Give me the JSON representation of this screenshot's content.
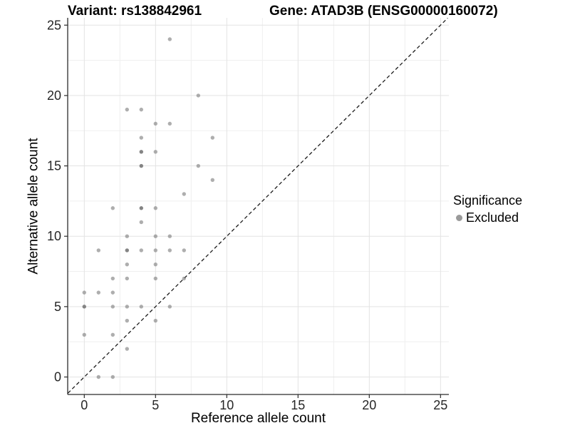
{
  "titles": {
    "variant": "Variant: rs138842961",
    "gene": "Gene: ATAD3B (ENSG00000160072)"
  },
  "legend": {
    "title": "Significance",
    "items": [
      {
        "label": "Excluded",
        "color": "#9a9a9a"
      }
    ]
  },
  "colors": {
    "point": "#7d7d7d",
    "grid_major": "#e3e3e3",
    "grid_minor": "#efefef",
    "axis": "#2b2b2b",
    "tick_label": "#262626",
    "identity_line": "#1c1c1c",
    "background": "#ffffff"
  },
  "chart_data": {
    "type": "scatter",
    "title": "Variant: rs138842961 / Gene: ATAD3B (ENSG00000160072)",
    "xlabel": "Reference allele count",
    "ylabel": "Alternative allele count",
    "xlim": [
      -1.15,
      25.55
    ],
    "ylim": [
      -1.25,
      25.5
    ],
    "x_ticks": [
      0,
      5,
      10,
      15,
      20,
      25
    ],
    "y_ticks": [
      0,
      5,
      10,
      15,
      20,
      25
    ],
    "x_minor": [
      2.5,
      7.5,
      12.5,
      17.5,
      22.5
    ],
    "y_minor": [
      2.5,
      7.5,
      12.5,
      17.5,
      22.5
    ],
    "grid": true,
    "legend_position": "right",
    "identity_line": {
      "style": "dashed",
      "slope": 1,
      "intercept": 0
    },
    "series": [
      {
        "name": "Excluded",
        "points": [
          [
            6,
            24
          ],
          [
            8,
            20
          ],
          [
            3,
            19
          ],
          [
            4,
            19
          ],
          [
            5,
            18
          ],
          [
            6,
            18
          ],
          [
            4,
            17
          ],
          [
            9,
            17
          ],
          [
            4,
            16
          ],
          [
            5,
            16
          ],
          [
            4,
            15
          ],
          [
            8,
            15
          ],
          [
            9,
            14
          ],
          [
            7,
            13
          ],
          [
            2,
            12
          ],
          [
            4,
            12
          ],
          [
            5,
            12
          ],
          [
            4,
            11
          ],
          [
            3,
            10
          ],
          [
            5,
            10
          ],
          [
            6,
            10
          ],
          [
            1,
            9
          ],
          [
            3,
            9
          ],
          [
            4,
            9
          ],
          [
            5,
            9
          ],
          [
            6,
            9
          ],
          [
            7,
            9
          ],
          [
            3,
            8
          ],
          [
            5,
            8
          ],
          [
            2,
            7
          ],
          [
            3,
            7
          ],
          [
            5,
            7
          ],
          [
            7,
            7
          ],
          [
            0,
            6
          ],
          [
            1,
            6
          ],
          [
            2,
            6
          ],
          [
            0,
            5
          ],
          [
            2,
            5
          ],
          [
            3,
            5
          ],
          [
            4,
            5
          ],
          [
            6,
            5
          ],
          [
            3,
            4
          ],
          [
            5,
            4
          ],
          [
            0,
            3
          ],
          [
            2,
            3
          ],
          [
            3,
            2
          ],
          [
            1,
            0
          ],
          [
            2,
            0
          ]
        ],
        "overplotted_points": [
          [
            4,
            16
          ],
          [
            4,
            15
          ],
          [
            4,
            12
          ],
          [
            3,
            9
          ],
          [
            0,
            5
          ]
        ]
      }
    ]
  }
}
